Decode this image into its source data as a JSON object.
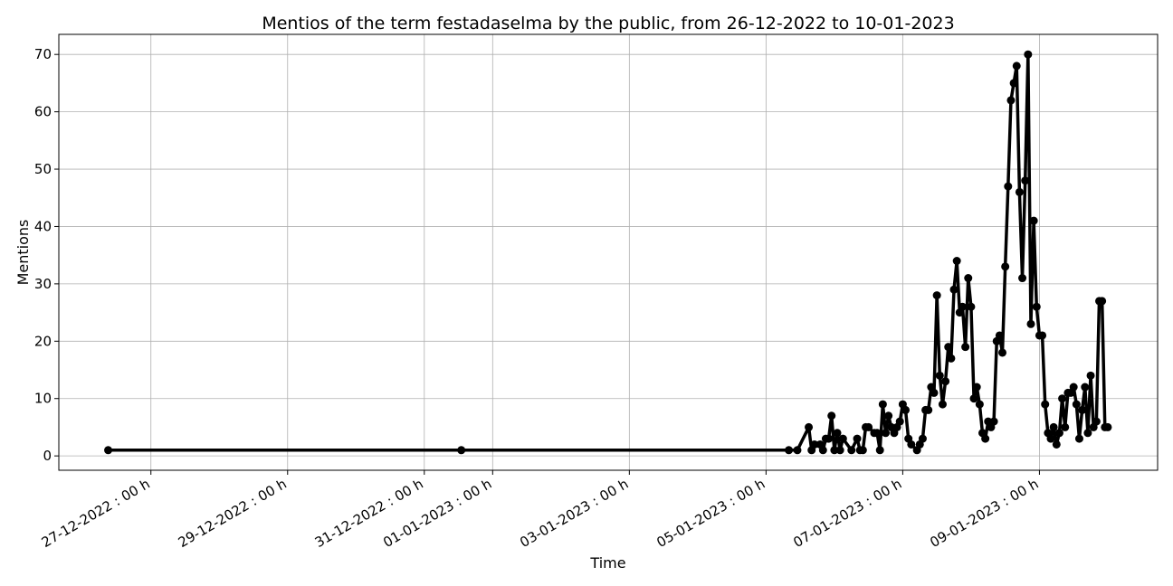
{
  "chart_data": {
    "type": "line",
    "title": "Mentios of the term festadaselma by the public, from 26-12-2022 to 10-01-2023",
    "xlabel": "Time",
    "ylabel": "Mentions",
    "x": [
      "2022-12-26T09:00",
      "2022-12-31T13:00",
      "2023-01-05T08:00",
      "2023-01-05T11:00",
      "2023-01-05T15:00",
      "2023-01-05T16:00",
      "2023-01-05T17:00",
      "2023-01-05T19:00",
      "2023-01-05T20:00",
      "2023-01-05T21:00",
      "2023-01-05T22:00",
      "2023-01-05T23:00",
      "2023-01-06T00:00",
      "2023-01-06T01:00",
      "2023-01-06T02:00",
      "2023-01-06T03:00",
      "2023-01-06T06:00",
      "2023-01-06T08:00",
      "2023-01-06T09:00",
      "2023-01-06T10:00",
      "2023-01-06T11:00",
      "2023-01-06T12:00",
      "2023-01-06T14:00",
      "2023-01-06T15:00",
      "2023-01-06T16:00",
      "2023-01-06T17:00",
      "2023-01-06T18:00",
      "2023-01-06T19:00",
      "2023-01-06T20:00",
      "2023-01-06T21:00",
      "2023-01-06T22:00",
      "2023-01-06T23:00",
      "2023-01-07T00:00",
      "2023-01-07T01:00",
      "2023-01-07T02:00",
      "2023-01-07T03:00",
      "2023-01-07T05:00",
      "2023-01-07T06:00",
      "2023-01-07T07:00",
      "2023-01-07T08:00",
      "2023-01-07T09:00",
      "2023-01-07T10:00",
      "2023-01-07T11:00",
      "2023-01-07T12:00",
      "2023-01-07T13:00",
      "2023-01-07T14:00",
      "2023-01-07T15:00",
      "2023-01-07T16:00",
      "2023-01-07T17:00",
      "2023-01-07T18:00",
      "2023-01-07T19:00",
      "2023-01-07T20:00",
      "2023-01-07T21:00",
      "2023-01-07T22:00",
      "2023-01-07T23:00",
      "2023-01-08T00:00",
      "2023-01-08T01:00",
      "2023-01-08T02:00",
      "2023-01-08T03:00",
      "2023-01-08T04:00",
      "2023-01-08T05:00",
      "2023-01-08T06:00",
      "2023-01-08T07:00",
      "2023-01-08T08:00",
      "2023-01-08T09:00",
      "2023-01-08T10:00",
      "2023-01-08T11:00",
      "2023-01-08T12:00",
      "2023-01-08T13:00",
      "2023-01-08T14:00",
      "2023-01-08T15:00",
      "2023-01-08T16:00",
      "2023-01-08T17:00",
      "2023-01-08T18:00",
      "2023-01-08T19:00",
      "2023-01-08T20:00",
      "2023-01-08T21:00",
      "2023-01-08T22:00",
      "2023-01-08T23:00",
      "2023-01-09T00:00",
      "2023-01-09T01:00",
      "2023-01-09T02:00",
      "2023-01-09T03:00",
      "2023-01-09T04:00",
      "2023-01-09T05:00",
      "2023-01-09T06:00",
      "2023-01-09T07:00",
      "2023-01-09T08:00",
      "2023-01-09T09:00",
      "2023-01-09T10:00",
      "2023-01-09T11:00",
      "2023-01-09T12:00",
      "2023-01-09T13:00",
      "2023-01-09T14:00",
      "2023-01-09T15:00",
      "2023-01-09T16:00",
      "2023-01-09T17:00",
      "2023-01-09T18:00",
      "2023-01-09T19:00",
      "2023-01-09T20:00",
      "2023-01-09T21:00",
      "2023-01-09T22:00",
      "2023-01-09T23:00",
      "2023-01-10T00:00"
    ],
    "series": [
      {
        "name": "Mentions",
        "color": "#000000",
        "values": [
          1,
          1,
          1,
          1,
          5,
          1,
          2,
          2,
          1,
          3,
          3,
          7,
          1,
          4,
          1,
          3,
          1,
          3,
          1,
          1,
          5,
          5,
          4,
          4,
          1,
          9,
          4,
          7,
          5,
          4,
          5,
          6,
          9,
          8,
          3,
          2,
          1,
          2,
          3,
          8,
          8,
          12,
          11,
          28,
          14,
          9,
          13,
          19,
          17,
          29,
          34,
          25,
          26,
          19,
          31,
          26,
          10,
          12,
          9,
          4,
          3,
          6,
          5,
          6,
          20,
          21,
          18,
          33,
          47,
          62,
          65,
          68,
          46,
          31,
          48,
          70,
          23,
          41,
          26,
          21,
          21,
          9,
          4,
          3,
          5,
          2,
          4,
          10,
          5,
          11,
          11,
          12,
          9,
          3,
          8,
          12,
          4,
          14,
          5,
          6,
          27,
          27,
          5,
          5
        ]
      }
    ],
    "xlim": [
      "2022-12-25T15:40",
      "2023-01-10T17:30"
    ],
    "xticks": [
      {
        "value": "2022-12-27T00:00",
        "label": "27-12-2022 : 00 h"
      },
      {
        "value": "2022-12-29T00:00",
        "label": "29-12-2022 : 00 h"
      },
      {
        "value": "2022-12-31T00:00",
        "label": "31-12-2022 : 00 h"
      },
      {
        "value": "2023-01-01T00:00",
        "label": "01-01-2023 : 00 h"
      },
      {
        "value": "2023-01-03T00:00",
        "label": "03-01-2023 : 00 h"
      },
      {
        "value": "2023-01-05T00:00",
        "label": "05-01-2023 : 00 h"
      },
      {
        "value": "2023-01-07T00:00",
        "label": "07-01-2023 : 00 h"
      },
      {
        "value": "2023-01-09T00:00",
        "label": "09-01-2023 : 00 h"
      }
    ],
    "ylim": [
      -2.5,
      73.5
    ],
    "yticks": [
      0,
      10,
      20,
      30,
      40,
      50,
      60,
      70
    ],
    "grid": true
  }
}
